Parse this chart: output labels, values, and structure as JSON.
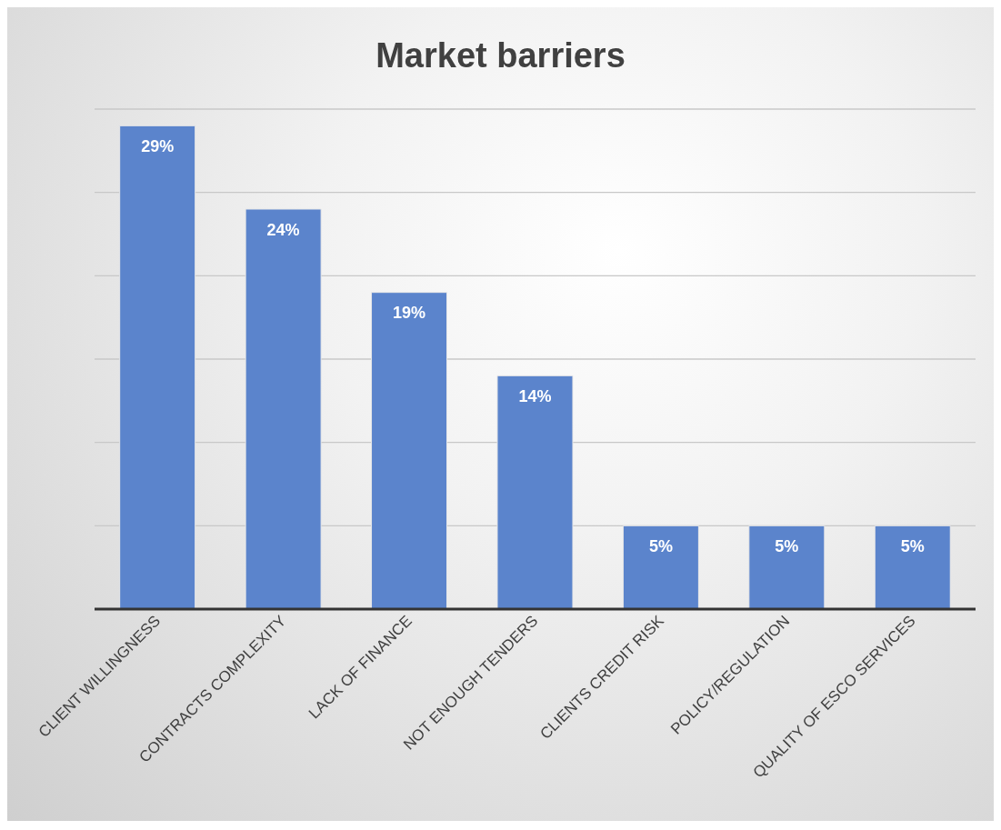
{
  "chart_data": {
    "type": "bar",
    "title": "Market barriers",
    "categories": [
      "CLIENT WILLINGNESS",
      "CONTRACTS COMPLEXITY",
      "LACK OF FINANCE",
      "NOT ENOUGH TENDERS",
      "CLIENTS CREDIT RISK",
      "POLICY/REGULATION",
      "QUALITY OF ESCO SERVICES"
    ],
    "values": [
      29,
      24,
      19,
      14,
      5,
      5,
      5
    ],
    "value_labels": [
      "29%",
      "24%",
      "19%",
      "14%",
      "5%",
      "5%",
      "5%"
    ],
    "color": "#5b84cc",
    "grid": "y",
    "tick_labels": "x"
  }
}
